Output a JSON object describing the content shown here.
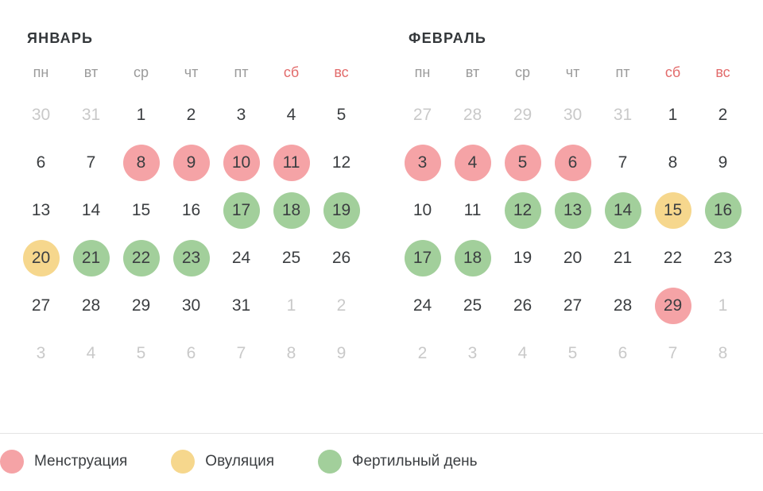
{
  "weekdays": [
    {
      "label": "пн",
      "weekend": false
    },
    {
      "label": "вт",
      "weekend": false
    },
    {
      "label": "ср",
      "weekend": false
    },
    {
      "label": "чт",
      "weekend": false
    },
    {
      "label": "пт",
      "weekend": false
    },
    {
      "label": "сб",
      "weekend": true
    },
    {
      "label": "вс",
      "weekend": true
    }
  ],
  "months": [
    {
      "title": "ЯНВАРЬ",
      "weeks": [
        [
          {
            "d": 30,
            "state": "muted"
          },
          {
            "d": 31,
            "state": "muted"
          },
          {
            "d": 1,
            "state": "normal"
          },
          {
            "d": 2,
            "state": "normal"
          },
          {
            "d": 3,
            "state": "normal"
          },
          {
            "d": 4,
            "state": "normal"
          },
          {
            "d": 5,
            "state": "normal"
          }
        ],
        [
          {
            "d": 6,
            "state": "normal"
          },
          {
            "d": 7,
            "state": "normal"
          },
          {
            "d": 8,
            "state": "menstruation"
          },
          {
            "d": 9,
            "state": "menstruation"
          },
          {
            "d": 10,
            "state": "menstruation"
          },
          {
            "d": 11,
            "state": "menstruation"
          },
          {
            "d": 12,
            "state": "normal"
          }
        ],
        [
          {
            "d": 13,
            "state": "normal"
          },
          {
            "d": 14,
            "state": "normal"
          },
          {
            "d": 15,
            "state": "normal"
          },
          {
            "d": 16,
            "state": "normal"
          },
          {
            "d": 17,
            "state": "fertile"
          },
          {
            "d": 18,
            "state": "fertile"
          },
          {
            "d": 19,
            "state": "fertile"
          }
        ],
        [
          {
            "d": 20,
            "state": "ovulation"
          },
          {
            "d": 21,
            "state": "fertile"
          },
          {
            "d": 22,
            "state": "fertile"
          },
          {
            "d": 23,
            "state": "fertile"
          },
          {
            "d": 24,
            "state": "normal"
          },
          {
            "d": 25,
            "state": "normal"
          },
          {
            "d": 26,
            "state": "normal"
          }
        ],
        [
          {
            "d": 27,
            "state": "normal"
          },
          {
            "d": 28,
            "state": "normal"
          },
          {
            "d": 29,
            "state": "normal"
          },
          {
            "d": 30,
            "state": "normal"
          },
          {
            "d": 31,
            "state": "normal"
          },
          {
            "d": 1,
            "state": "muted"
          },
          {
            "d": 2,
            "state": "muted"
          }
        ],
        [
          {
            "d": 3,
            "state": "muted"
          },
          {
            "d": 4,
            "state": "muted"
          },
          {
            "d": 5,
            "state": "muted"
          },
          {
            "d": 6,
            "state": "muted"
          },
          {
            "d": 7,
            "state": "muted"
          },
          {
            "d": 8,
            "state": "muted"
          },
          {
            "d": 9,
            "state": "muted"
          }
        ]
      ]
    },
    {
      "title": "ФЕВРАЛЬ",
      "weeks": [
        [
          {
            "d": 27,
            "state": "muted"
          },
          {
            "d": 28,
            "state": "muted"
          },
          {
            "d": 29,
            "state": "muted"
          },
          {
            "d": 30,
            "state": "muted"
          },
          {
            "d": 31,
            "state": "muted"
          },
          {
            "d": 1,
            "state": "normal"
          },
          {
            "d": 2,
            "state": "normal"
          }
        ],
        [
          {
            "d": 3,
            "state": "menstruation"
          },
          {
            "d": 4,
            "state": "menstruation"
          },
          {
            "d": 5,
            "state": "menstruation"
          },
          {
            "d": 6,
            "state": "menstruation"
          },
          {
            "d": 7,
            "state": "normal"
          },
          {
            "d": 8,
            "state": "normal"
          },
          {
            "d": 9,
            "state": "normal"
          }
        ],
        [
          {
            "d": 10,
            "state": "normal"
          },
          {
            "d": 11,
            "state": "normal"
          },
          {
            "d": 12,
            "state": "fertile"
          },
          {
            "d": 13,
            "state": "fertile"
          },
          {
            "d": 14,
            "state": "fertile"
          },
          {
            "d": 15,
            "state": "ovulation"
          },
          {
            "d": 16,
            "state": "fertile"
          }
        ],
        [
          {
            "d": 17,
            "state": "fertile"
          },
          {
            "d": 18,
            "state": "fertile"
          },
          {
            "d": 19,
            "state": "normal"
          },
          {
            "d": 20,
            "state": "normal"
          },
          {
            "d": 21,
            "state": "normal"
          },
          {
            "d": 22,
            "state": "normal"
          },
          {
            "d": 23,
            "state": "normal"
          }
        ],
        [
          {
            "d": 24,
            "state": "normal"
          },
          {
            "d": 25,
            "state": "normal"
          },
          {
            "d": 26,
            "state": "normal"
          },
          {
            "d": 27,
            "state": "normal"
          },
          {
            "d": 28,
            "state": "normal"
          },
          {
            "d": 29,
            "state": "menstruation"
          },
          {
            "d": 1,
            "state": "muted"
          }
        ],
        [
          {
            "d": 2,
            "state": "muted"
          },
          {
            "d": 3,
            "state": "muted"
          },
          {
            "d": 4,
            "state": "muted"
          },
          {
            "d": 5,
            "state": "muted"
          },
          {
            "d": 6,
            "state": "muted"
          },
          {
            "d": 7,
            "state": "muted"
          },
          {
            "d": 8,
            "state": "muted"
          }
        ]
      ]
    }
  ],
  "legend": [
    {
      "label": "Менструация",
      "state": "menstruation"
    },
    {
      "label": "Овуляция",
      "state": "ovulation"
    },
    {
      "label": "Фертильный день",
      "state": "fertile"
    }
  ],
  "colors": {
    "menstruation": "#f5a3a6",
    "ovulation": "#f6d78d",
    "fertile": "#a2cf9b",
    "weekend_header": "#e26b6b",
    "weekday_header": "#9b9b9b",
    "muted_day": "#c9c9c9",
    "day_text": "#3b3e41"
  }
}
